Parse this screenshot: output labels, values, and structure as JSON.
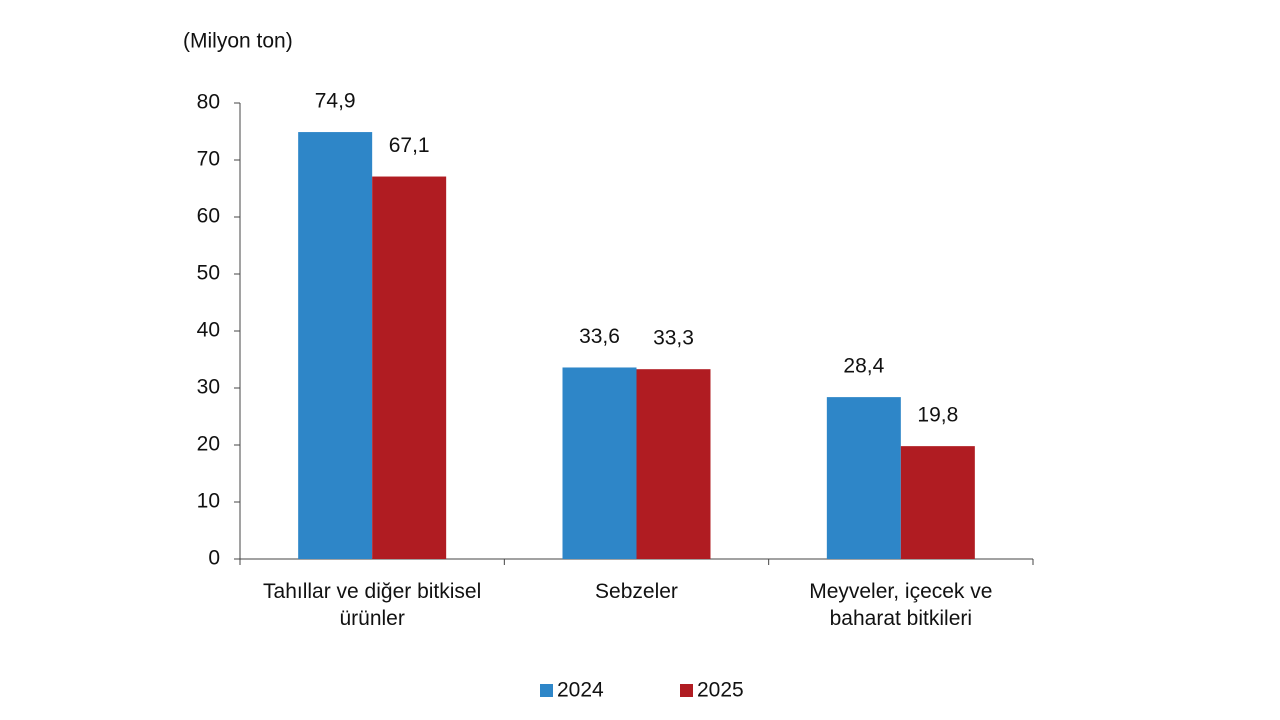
{
  "chart_data": {
    "type": "bar",
    "subtitle": "(Milyon ton)",
    "categories": [
      "Tahıllar ve diğer bitkisel ürünler",
      "Sebzeler",
      "Meyveler, içecek ve baharat bitkileri"
    ],
    "series": [
      {
        "name": "2024",
        "color": "#2e86c8",
        "values": [
          74.9,
          33.6,
          28.4
        ],
        "value_labels": [
          "74,9",
          "33,6",
          "28,4"
        ]
      },
      {
        "name": "2025",
        "color": "#b01c22",
        "values": [
          67.1,
          33.3,
          19.8
        ],
        "value_labels": [
          "67,1",
          "33,3",
          "19,8"
        ]
      }
    ],
    "ylim": [
      0,
      80
    ],
    "yticks": [
      0,
      10,
      20,
      30,
      40,
      50,
      60,
      70,
      80
    ],
    "grid": false,
    "legend": "bottom"
  }
}
